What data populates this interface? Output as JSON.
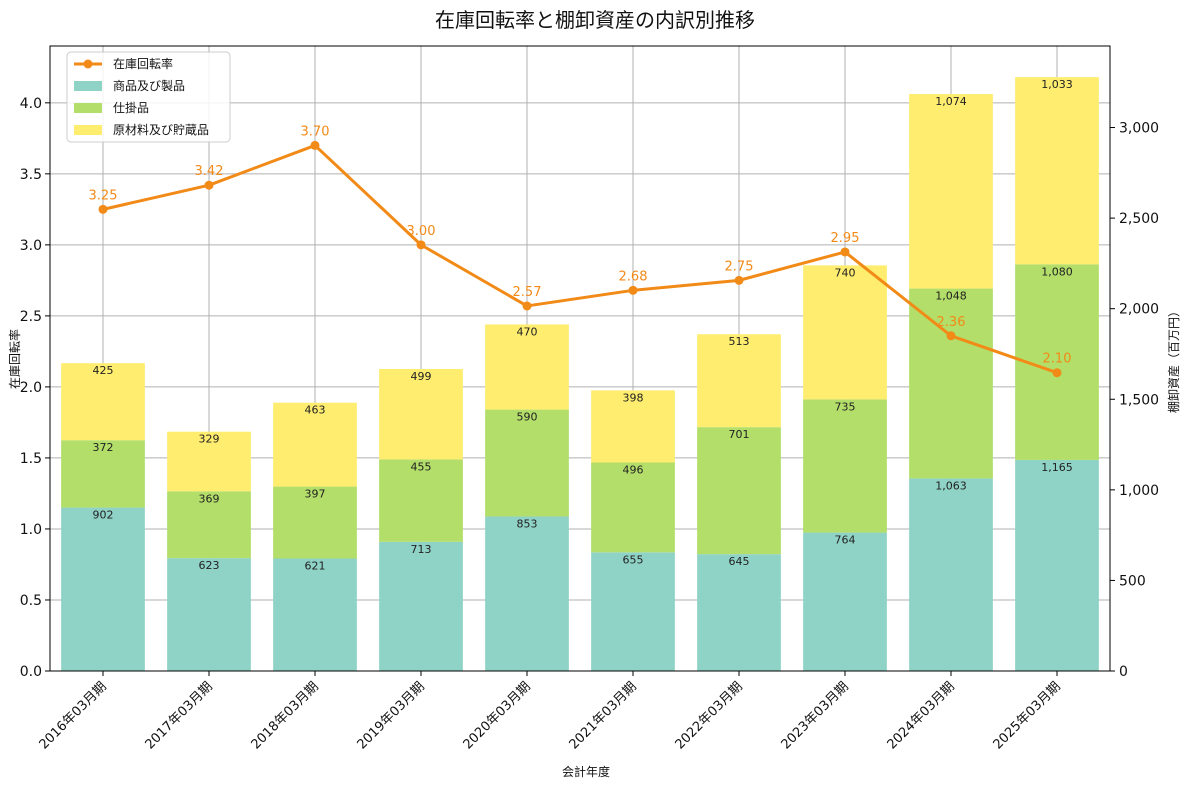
{
  "chart_data": {
    "type": "bar",
    "title": "在庫回転率と棚卸資産の内訳別推移",
    "xlabel": "会計年度",
    "ylabel_left": "在庫回転率",
    "ylabel_right": "棚卸資産（百万円）",
    "categories": [
      "2016年03月期",
      "2017年03月期",
      "2018年03月期",
      "2019年03月期",
      "2020年03月期",
      "2021年03月期",
      "2022年03月期",
      "2023年03月期",
      "2024年03月期",
      "2025年03月期"
    ],
    "ylim_left": [
      0,
      4.4
    ],
    "ylim_right": [
      0,
      3450
    ],
    "yticks_left": [
      "0.0",
      "0.5",
      "1.0",
      "1.5",
      "2.0",
      "2.5",
      "3.0",
      "3.5",
      "4.0"
    ],
    "yticks_right": [
      "0",
      "500",
      "1,000",
      "1,500",
      "2,000",
      "2,500",
      "3,000"
    ],
    "grid": true,
    "legend_position": "top-left",
    "stacked_series": [
      {
        "name": "商品及び製品",
        "color": "#8fd3c7",
        "values": [
          902,
          623,
          621,
          713,
          853,
          655,
          645,
          764,
          1063,
          1165
        ],
        "labels": [
          "902",
          "623",
          "621",
          "713",
          "853",
          "655",
          "645",
          "764",
          "1,063",
          "1,165"
        ]
      },
      {
        "name": "仕掛品",
        "color": "#b3de69",
        "values": [
          372,
          369,
          397,
          455,
          590,
          496,
          701,
          735,
          1048,
          1080
        ],
        "labels": [
          "372",
          "369",
          "397",
          "455",
          "590",
          "496",
          "701",
          "735",
          "1,048",
          "1,080"
        ]
      },
      {
        "name": "原材料及び貯蔵品",
        "color": "#ffed6f",
        "values": [
          425,
          329,
          463,
          499,
          470,
          398,
          513,
          740,
          1074,
          1033
        ],
        "labels": [
          "425",
          "329",
          "463",
          "499",
          "470",
          "398",
          "513",
          "740",
          "1,074",
          "1,033"
        ]
      }
    ],
    "line_series": {
      "name": "在庫回転率",
      "color": "#f28a17",
      "values": [
        3.25,
        3.42,
        3.7,
        3.0,
        2.57,
        2.68,
        2.75,
        2.95,
        2.36,
        2.1
      ],
      "labels": [
        "3.25",
        "3.42",
        "3.70",
        "3.00",
        "2.57",
        "2.68",
        "2.75",
        "2.95",
        "2.36",
        "2.10"
      ]
    }
  }
}
